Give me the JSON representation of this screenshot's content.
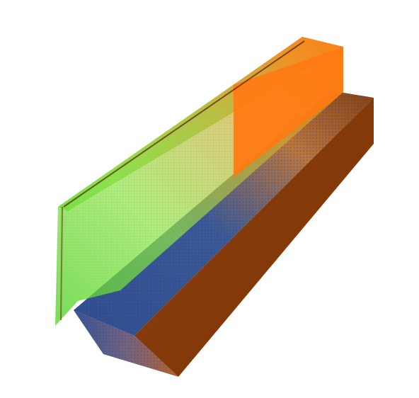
{
  "scene": {
    "kind": "3d-point-cloud-render",
    "background": "#ffffff",
    "objects": [
      {
        "name": "left-wall",
        "colors": [
          "#4cd92a",
          "#8ee84a",
          "#c9b23a",
          "#ff7a12"
        ],
        "edge_color": "#5a2a10"
      },
      {
        "name": "lower-slab",
        "colors": [
          "#1f3f86",
          "#6a6aa0",
          "#c46a24",
          "#7a3000"
        ]
      }
    ]
  }
}
